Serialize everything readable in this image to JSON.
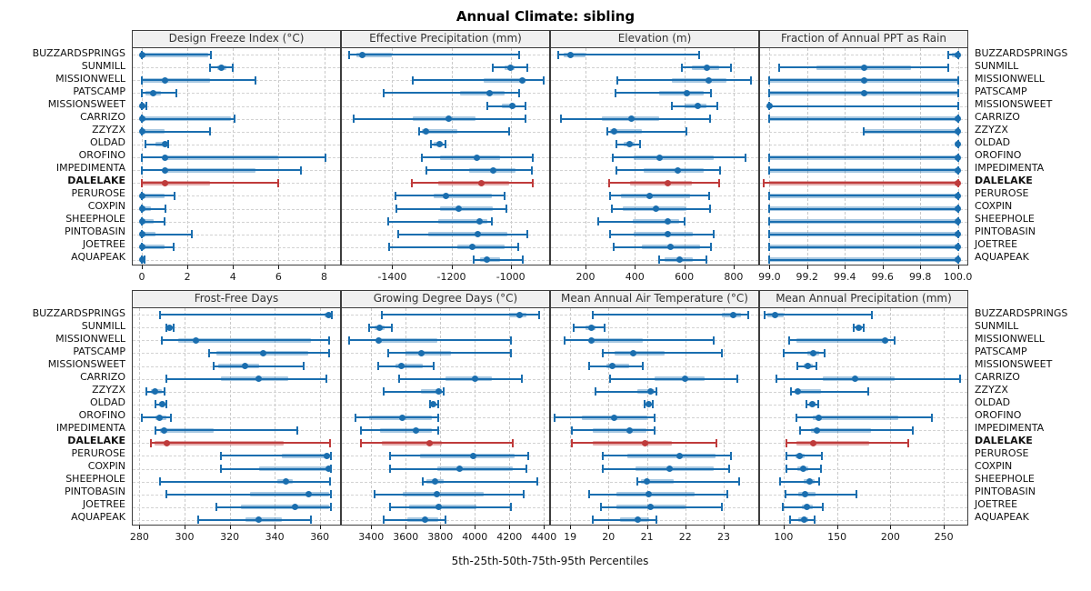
{
  "title": "Annual Climate: sibling",
  "caption": "5th-25th-50th-75th-95th Percentiles",
  "highlight": "DALELAKE",
  "percentiles": [
    5,
    25,
    50,
    75,
    95
  ],
  "locations": [
    "BUZZARDSPRINGS",
    "SUNMILL",
    "MISSIONWELL",
    "PATSCAMP",
    "MISSIONSWEET",
    "CARRIZO",
    "ZZYZX",
    "OLDAD",
    "OROFINO",
    "IMPEDIMENTA",
    "DALELAKE",
    "PERUROSE",
    "COXPIN",
    "SHEEPHOLE",
    "PINTOBASIN",
    "JOETREE",
    "AQUAPEAK"
  ],
  "colors": {
    "series": "#1a6eaf",
    "series_band": "rgba(26,110,175,0.38)",
    "highlight": "#bf3b3b",
    "highlight_band": "rgba(191,59,59,0.42)",
    "grid": "#c9c9c9",
    "header_bg": "#f0f0f0",
    "border": "#3c3c3c"
  },
  "chart_data": [
    {
      "type": "scatter",
      "variant": "percentile-errorbar",
      "title": "Design Freeze Index (°C)",
      "xlim": [
        -0.4,
        8.7
      ],
      "xticks": [
        0,
        2,
        4,
        6,
        8
      ],
      "xtick_labels": [
        "0",
        "2",
        "4",
        "6",
        "8"
      ],
      "grid": true,
      "values": [
        [
          0,
          0,
          0,
          2.9,
          3.05
        ],
        [
          3.0,
          3.3,
          3.5,
          3.7,
          4.0
        ],
        [
          0,
          0,
          1,
          3,
          5
        ],
        [
          0,
          0.15,
          0.5,
          0.85,
          1.5
        ],
        [
          0,
          0,
          0,
          0.05,
          0.2
        ],
        [
          0,
          0,
          0,
          3.9,
          4.05
        ],
        [
          0,
          0,
          0,
          1,
          3
        ],
        [
          0.15,
          0.6,
          1.0,
          1.05,
          1.15
        ],
        [
          0,
          1,
          1,
          6,
          8.05
        ],
        [
          0,
          0.9,
          1,
          5,
          7
        ],
        [
          0,
          0,
          1,
          3,
          6
        ],
        [
          0,
          0,
          0,
          1,
          1.45
        ],
        [
          0,
          0,
          0,
          0.4,
          1.05
        ],
        [
          0,
          0,
          0,
          0.5,
          1.0
        ],
        [
          0,
          0,
          0,
          0.6,
          2.2
        ],
        [
          0,
          0,
          0,
          1,
          1.4
        ],
        [
          0,
          0,
          0,
          0,
          0.1
        ]
      ]
    },
    {
      "type": "scatter",
      "variant": "percentile-errorbar",
      "title": "Effective Precipitation (mm)",
      "xlim": [
        -1570,
        -870
      ],
      "xticks": [
        -1400,
        -1200,
        -1000
      ],
      "xtick_labels": [
        "-1400",
        "-1200",
        "-1000"
      ],
      "grid": true,
      "values": [
        [
          -1545,
          -1520,
          -1500,
          -1400,
          -970
        ],
        [
          -1060,
          -1020,
          -1000,
          -985,
          -945
        ],
        [
          -1330,
          -1090,
          -960,
          -950,
          -890
        ],
        [
          -1430,
          -1170,
          -1070,
          -1020,
          -970
        ],
        [
          -1080,
          -1030,
          -995,
          -985,
          -950
        ],
        [
          -1530,
          -1330,
          -1210,
          -1120,
          -950
        ],
        [
          -1310,
          -1300,
          -1285,
          -1180,
          -1005
        ],
        [
          -1270,
          -1260,
          -1240,
          -1230,
          -1220
        ],
        [
          -1300,
          -1240,
          -1115,
          -1035,
          -925
        ],
        [
          -1285,
          -1140,
          -1060,
          -985,
          -930
        ],
        [
          -1335,
          -1245,
          -1100,
          -1005,
          -925
        ],
        [
          -1390,
          -1260,
          -1220,
          -1065,
          -1020
        ],
        [
          -1385,
          -1240,
          -1175,
          -1060,
          -1015
        ],
        [
          -1415,
          -1245,
          -1105,
          -1080,
          -1065
        ],
        [
          -1380,
          -1280,
          -1110,
          -1010,
          -945
        ],
        [
          -1410,
          -1180,
          -1130,
          -1020,
          -975
        ],
        [
          -1125,
          -1105,
          -1080,
          -1035,
          -960
        ]
      ]
    },
    {
      "type": "scatter",
      "variant": "percentile-errorbar",
      "title": "Elevation (m)",
      "xlim": [
        60,
        900
      ],
      "xticks": [
        200,
        400,
        600,
        800
      ],
      "xtick_labels": [
        "200",
        "400",
        "600",
        "800"
      ],
      "grid": true,
      "values": [
        [
          90,
          110,
          140,
          200,
          660
        ],
        [
          590,
          630,
          690,
          740,
          790
        ],
        [
          330,
          550,
          700,
          770,
          870
        ],
        [
          320,
          500,
          610,
          680,
          710
        ],
        [
          550,
          600,
          655,
          690,
          735
        ],
        [
          100,
          265,
          385,
          500,
          705
        ],
        [
          290,
          300,
          315,
          430,
          610
        ],
        [
          325,
          355,
          380,
          400,
          420
        ],
        [
          310,
          395,
          500,
          720,
          850
        ],
        [
          325,
          435,
          575,
          680,
          745
        ],
        [
          295,
          380,
          535,
          630,
          740
        ],
        [
          300,
          345,
          460,
          625,
          700
        ],
        [
          305,
          350,
          485,
          610,
          705
        ],
        [
          250,
          390,
          535,
          580,
          600
        ],
        [
          300,
          395,
          535,
          635,
          720
        ],
        [
          315,
          430,
          545,
          665,
          710
        ],
        [
          500,
          520,
          580,
          635,
          690
        ]
      ]
    },
    {
      "type": "scatter",
      "variant": "percentile-errorbar",
      "title": "Fraction of Annual PPT as Rain",
      "xlim": [
        98.95,
        100.05
      ],
      "xticks": [
        99.0,
        99.2,
        99.4,
        99.6,
        99.8,
        100.0
      ],
      "xtick_labels": [
        "99.0",
        "99.2",
        "99.4",
        "99.6",
        "99.8",
        "100.0"
      ],
      "grid": true,
      "values": [
        [
          99.95,
          99.97,
          100,
          100,
          100
        ],
        [
          99.05,
          99.25,
          99.5,
          99.75,
          99.95
        ],
        [
          99.0,
          99.0,
          99.5,
          100,
          100
        ],
        [
          99.0,
          99.0,
          99.5,
          100,
          100
        ],
        [
          99.0,
          99.0,
          99.0,
          99.0,
          100
        ],
        [
          99.0,
          99.0,
          100,
          100,
          100
        ],
        [
          99.5,
          99.5,
          100,
          100,
          100
        ],
        [
          100,
          100,
          100,
          100,
          100
        ],
        [
          99.0,
          99.0,
          100,
          100,
          100
        ],
        [
          99.0,
          99.0,
          100,
          100,
          100
        ],
        [
          98.97,
          99.0,
          100,
          100,
          100
        ],
        [
          99.0,
          99.0,
          100,
          100,
          100
        ],
        [
          99.0,
          99.0,
          100,
          100,
          100
        ],
        [
          99.0,
          99.0,
          100,
          100,
          100
        ],
        [
          99.0,
          99.0,
          100,
          100,
          100
        ],
        [
          99.0,
          99.0,
          100,
          100,
          100
        ],
        [
          99.0,
          99.0,
          100,
          100,
          100
        ]
      ]
    },
    {
      "type": "scatter",
      "variant": "percentile-errorbar",
      "title": "Frost-Free Days",
      "xlim": [
        277,
        369
      ],
      "xticks": [
        280,
        300,
        320,
        340,
        360
      ],
      "xtick_labels": [
        "280",
        "300",
        "320",
        "340",
        "360"
      ],
      "grid": true,
      "values": [
        [
          289,
          362,
          364,
          365,
          365.5
        ],
        [
          292,
          292.8,
          293.5,
          294.2,
          295
        ],
        [
          290,
          297,
          305,
          356,
          364
        ],
        [
          311,
          314,
          335,
          355,
          364
        ],
        [
          313,
          315,
          327,
          333,
          353
        ],
        [
          292,
          316,
          333,
          346,
          363
        ],
        [
          283,
          285,
          287,
          290,
          291
        ],
        [
          287,
          288.5,
          290,
          291,
          292
        ],
        [
          281,
          287,
          289,
          292,
          294
        ],
        [
          287,
          289,
          291,
          313,
          350
        ],
        [
          285,
          286.5,
          292,
          344,
          364.5
        ],
        [
          316,
          343,
          363,
          364.5,
          365
        ],
        [
          316,
          333,
          364,
          364.5,
          365
        ],
        [
          289,
          341,
          345,
          348,
          364.5
        ],
        [
          292,
          329,
          355,
          364,
          365
        ],
        [
          314,
          325,
          349,
          364,
          365
        ],
        [
          306,
          327,
          333,
          343,
          356
        ]
      ]
    },
    {
      "type": "scatter",
      "variant": "percentile-errorbar",
      "title": "Growing Degree Days (°C)",
      "xlim": [
        3230,
        4430
      ],
      "xticks": [
        3400,
        3600,
        3800,
        4000,
        4200,
        4400
      ],
      "xtick_labels": [
        "3400",
        "3600",
        "3800",
        "4000",
        "4200",
        "4400"
      ],
      "grid": true,
      "values": [
        [
          3460,
          4200,
          4260,
          4300,
          4370
        ],
        [
          3390,
          3420,
          3450,
          3480,
          3520
        ],
        [
          3270,
          3430,
          3445,
          3780,
          4210
        ],
        [
          3500,
          3600,
          3690,
          3860,
          4210
        ],
        [
          3440,
          3540,
          3575,
          3700,
          3760
        ],
        [
          3560,
          3830,
          4000,
          4100,
          4270
        ],
        [
          3470,
          3690,
          3790,
          3810,
          3820
        ],
        [
          3740,
          3748,
          3760,
          3775,
          3785
        ],
        [
          3310,
          3390,
          3580,
          3750,
          3790
        ],
        [
          3340,
          3450,
          3660,
          3750,
          3790
        ],
        [
          3340,
          3460,
          3740,
          3810,
          4220
        ],
        [
          3510,
          3680,
          3990,
          4230,
          4310
        ],
        [
          3510,
          3780,
          3910,
          4220,
          4300
        ],
        [
          3700,
          3720,
          3770,
          3820,
          4360
        ],
        [
          3420,
          3580,
          3780,
          4050,
          4280
        ],
        [
          3510,
          3620,
          3790,
          4010,
          4210
        ],
        [
          3470,
          3610,
          3710,
          3790,
          3830
        ]
      ]
    },
    {
      "type": "scatter",
      "variant": "percentile-errorbar",
      "title": "Mean Annual Air Temperature (°C)",
      "xlim": [
        18.5,
        23.9
      ],
      "xticks": [
        19,
        20,
        21,
        22,
        23
      ],
      "xtick_labels": [
        "19",
        "20",
        "21",
        "22",
        "23"
      ],
      "grid": true,
      "values": [
        [
          19.6,
          22.95,
          23.25,
          23.45,
          23.65
        ],
        [
          19.1,
          19.4,
          19.55,
          19.65,
          19.9
        ],
        [
          18.85,
          19.5,
          19.55,
          20.9,
          22.75
        ],
        [
          19.85,
          20.15,
          20.65,
          21.45,
          22.95
        ],
        [
          19.5,
          19.95,
          20.1,
          20.55,
          20.9
        ],
        [
          20.05,
          21.2,
          22.0,
          22.5,
          23.35
        ],
        [
          19.65,
          20.75,
          21.1,
          21.2,
          21.25
        ],
        [
          20.95,
          21.0,
          21.05,
          21.1,
          21.15
        ],
        [
          18.6,
          19.3,
          20.15,
          21.0,
          21.2
        ],
        [
          19.05,
          19.6,
          20.55,
          21.0,
          21.2
        ],
        [
          19.05,
          19.6,
          20.95,
          21.65,
          22.8
        ],
        [
          19.85,
          20.5,
          21.85,
          22.8,
          23.2
        ],
        [
          19.85,
          20.7,
          21.6,
          22.75,
          23.15
        ],
        [
          20.75,
          20.85,
          21.0,
          21.7,
          23.4
        ],
        [
          19.5,
          20.2,
          21.05,
          22.25,
          23.1
        ],
        [
          19.8,
          20.2,
          21.1,
          22.0,
          22.95
        ],
        [
          19.6,
          20.3,
          20.75,
          21.05,
          21.25
        ]
      ]
    },
    {
      "type": "scatter",
      "variant": "percentile-errorbar",
      "title": "Mean Annual Precipitation (mm)",
      "xlim": [
        78,
        272
      ],
      "xticks": [
        100,
        150,
        200,
        250
      ],
      "xtick_labels": [
        "100",
        "150",
        "200",
        "250"
      ],
      "grid": true,
      "values": [
        [
          82,
          85,
          92,
          100,
          183
        ],
        [
          166,
          168,
          170,
          173,
          175
        ],
        [
          105,
          112,
          195,
          198,
          204
        ],
        [
          100,
          122,
          128,
          133,
          138
        ],
        [
          113,
          119,
          123,
          127,
          131
        ],
        [
          93,
          137,
          167,
          204,
          265
        ],
        [
          107,
          110,
          113,
          135,
          179
        ],
        [
          121,
          124,
          127,
          130,
          132
        ],
        [
          112,
          127,
          133,
          207,
          239
        ],
        [
          115,
          126,
          131,
          182,
          221
        ],
        [
          103,
          112,
          128,
          180,
          217
        ],
        [
          103,
          111,
          115,
          120,
          136
        ],
        [
          103,
          113,
          118,
          123,
          135
        ],
        [
          97,
          119,
          124,
          129,
          133
        ],
        [
          102,
          114,
          120,
          130,
          168
        ],
        [
          99,
          117,
          122,
          127,
          137
        ],
        [
          106,
          114,
          119,
          123,
          129
        ]
      ]
    }
  ]
}
